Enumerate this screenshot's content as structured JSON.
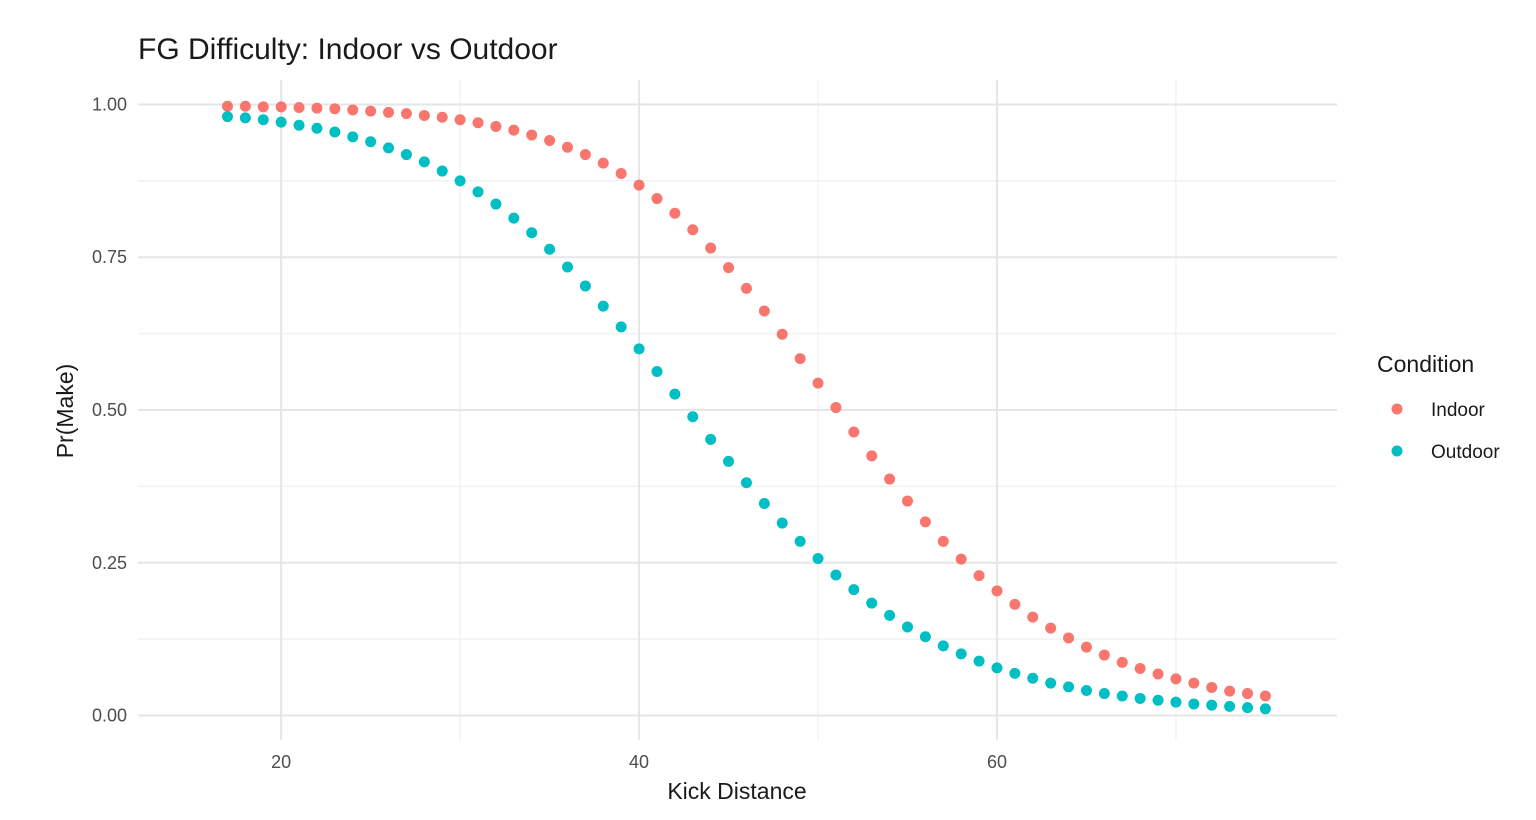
{
  "chart_data": {
    "type": "scatter",
    "title": "FG Difficulty: Indoor vs Outdoor",
    "xlabel": "Kick Distance",
    "ylabel": "Pr(Make)",
    "xlim": [
      12,
      79
    ],
    "ylim": [
      -0.04,
      1.04
    ],
    "x_ticks": [
      20,
      40,
      60
    ],
    "x_minor_ticks": [
      30,
      50,
      70
    ],
    "y_ticks": [
      0,
      0.25,
      0.5,
      0.75,
      1.0
    ],
    "y_tick_labels": [
      "0.00",
      "0.25",
      "0.50",
      "0.75",
      "1.00"
    ],
    "y_minor_ticks": [
      0.125,
      0.375,
      0.625,
      0.875
    ],
    "grid": true,
    "legend": {
      "title": "Condition",
      "position": "right"
    },
    "x": [
      17,
      18,
      19,
      20,
      21,
      22,
      23,
      24,
      25,
      26,
      27,
      28,
      29,
      30,
      31,
      32,
      33,
      34,
      35,
      36,
      37,
      38,
      39,
      40,
      41,
      42,
      43,
      44,
      45,
      46,
      47,
      48,
      49,
      50,
      51,
      52,
      53,
      54,
      55,
      56,
      57,
      58,
      59,
      60,
      61,
      62,
      63,
      64,
      65,
      66,
      67,
      68,
      69,
      70,
      71,
      72,
      73,
      74,
      75
    ],
    "series": [
      {
        "name": "Indoor",
        "color": "#F8766D",
        "values": [
          0.997,
          0.997,
          0.996,
          0.996,
          0.995,
          0.994,
          0.993,
          0.991,
          0.989,
          0.987,
          0.985,
          0.982,
          0.979,
          0.975,
          0.97,
          0.964,
          0.958,
          0.95,
          0.941,
          0.93,
          0.918,
          0.904,
          0.887,
          0.868,
          0.846,
          0.822,
          0.795,
          0.765,
          0.733,
          0.699,
          0.662,
          0.624,
          0.584,
          0.544,
          0.504,
          0.464,
          0.425,
          0.387,
          0.351,
          0.317,
          0.285,
          0.256,
          0.229,
          0.204,
          0.182,
          0.161,
          0.143,
          0.127,
          0.112,
          0.099,
          0.087,
          0.077,
          0.068,
          0.06,
          0.053,
          0.046,
          0.04,
          0.036,
          0.032
        ]
      },
      {
        "name": "Outdoor",
        "color": "#00BFC4",
        "values": [
          0.98,
          0.978,
          0.975,
          0.971,
          0.966,
          0.961,
          0.955,
          0.947,
          0.939,
          0.929,
          0.918,
          0.906,
          0.891,
          0.875,
          0.857,
          0.837,
          0.814,
          0.79,
          0.763,
          0.734,
          0.703,
          0.67,
          0.636,
          0.6,
          0.563,
          0.526,
          0.489,
          0.452,
          0.416,
          0.381,
          0.347,
          0.315,
          0.285,
          0.257,
          0.23,
          0.206,
          0.184,
          0.164,
          0.145,
          0.129,
          0.114,
          0.101,
          0.089,
          0.078,
          0.069,
          0.061,
          0.053,
          0.047,
          0.041,
          0.036,
          0.032,
          0.028,
          0.025,
          0.022,
          0.019,
          0.017,
          0.015,
          0.013,
          0.011
        ]
      }
    ]
  }
}
